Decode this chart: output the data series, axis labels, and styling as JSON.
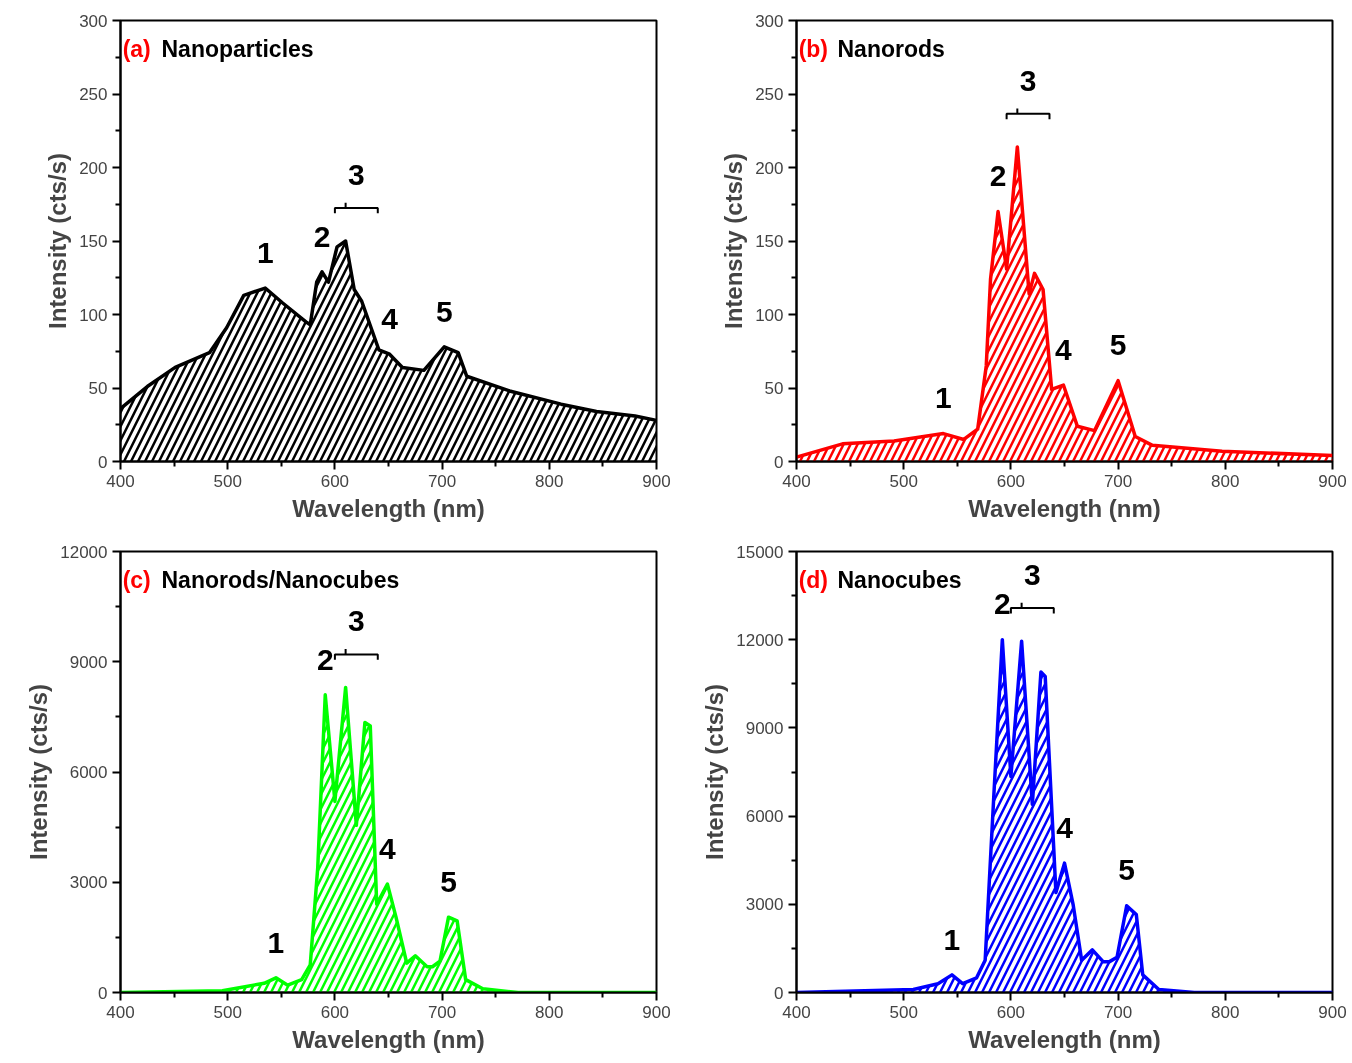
{
  "chart_data": [
    {
      "type": "area",
      "title": "(a) Nanoparticles",
      "xlabel": "Wavelength (nm)",
      "ylabel": "Intensity (cts/s)",
      "color": "#000000",
      "grid": false,
      "xlim": [
        400,
        900
      ],
      "ylim": [
        0,
        300
      ],
      "xticks": [
        400,
        500,
        600,
        700,
        800,
        900
      ],
      "yticks": [
        0,
        50,
        100,
        150,
        200,
        250,
        300
      ],
      "x": [
        400,
        425,
        451,
        483,
        499,
        515,
        535,
        551,
        573,
        577,
        583,
        588,
        594,
        602,
        610,
        618,
        625,
        641,
        651,
        663,
        683,
        702,
        715,
        723,
        763,
        811,
        844,
        880,
        900
      ],
      "values": [
        36,
        51,
        64,
        74,
        91,
        113,
        118,
        108,
        95,
        93,
        122,
        129,
        122,
        146,
        150,
        117,
        109,
        76,
        73,
        64,
        62,
        78,
        74,
        58,
        48,
        39,
        34,
        31,
        28
      ],
      "annotations": [
        {
          "text": "1",
          "x": 535,
          "y": 118
        },
        {
          "text": "2",
          "x": 588,
          "y": 129
        },
        {
          "text": "3",
          "x": 610,
          "y": 150
        },
        {
          "text": "4",
          "x": 651,
          "y": 73
        },
        {
          "text": "5",
          "x": 702,
          "y": 78
        }
      ]
    },
    {
      "type": "area",
      "title": "(b) Nanorods",
      "xlabel": "Wavelength (nm)",
      "ylabel": "Intensity (cts/s)",
      "color": "#ff0000",
      "grid": false,
      "xlim": [
        400,
        900
      ],
      "ylim": [
        0,
        300
      ],
      "xticks": [
        400,
        500,
        600,
        700,
        800,
        900
      ],
      "yticks": [
        0,
        50,
        100,
        150,
        200,
        250,
        300
      ],
      "x": [
        400,
        443,
        491,
        537,
        556,
        569,
        577,
        581,
        588,
        596,
        606,
        617,
        622,
        630,
        638,
        649,
        662,
        678,
        700,
        716,
        732,
        797,
        900
      ],
      "values": [
        3,
        12,
        14,
        19,
        15,
        22,
        65,
        124,
        170,
        131,
        214,
        114,
        128,
        117,
        49,
        52,
        24,
        21,
        55,
        17,
        11,
        7,
        4
      ],
      "annotations": [
        {
          "text": "1",
          "x": 537,
          "y": 19
        },
        {
          "text": "2",
          "x": 588,
          "y": 170
        },
        {
          "text": "3",
          "x": 606,
          "y": 214
        },
        {
          "text": "4",
          "x": 649,
          "y": 52
        },
        {
          "text": "5",
          "x": 700,
          "y": 55
        }
      ]
    },
    {
      "type": "area",
      "title": "(c) Nanorods/Nanocubes",
      "xlabel": "Wavelength (nm)",
      "ylabel": "Intensity (cts/s)",
      "color": "#00ff00",
      "grid": false,
      "xlim": [
        400,
        900
      ],
      "ylim": [
        0,
        12000
      ],
      "xticks": [
        400,
        500,
        600,
        700,
        800,
        900
      ],
      "yticks": [
        0,
        3000,
        6000,
        9000,
        12000
      ],
      "x": [
        400,
        495,
        534,
        545,
        556,
        569,
        577,
        584,
        591,
        600,
        610,
        620,
        628,
        633,
        639,
        649,
        657,
        667,
        675,
        686,
        691,
        698,
        706,
        714,
        722,
        738,
        771,
        900
      ],
      "values": [
        0,
        50,
        250,
        400,
        200,
        350,
        750,
        3400,
        8100,
        5200,
        8300,
        4550,
        7350,
        7250,
        2400,
        2950,
        2050,
        800,
        1000,
        700,
        700,
        850,
        2050,
        1950,
        350,
        100,
        0,
        0
      ],
      "annotations": [
        {
          "text": "1",
          "x": 545,
          "y": 400
        },
        {
          "text": "2",
          "x": 591,
          "y": 8100
        },
        {
          "text": "3",
          "x": 610,
          "y": 8300
        },
        {
          "text": "4",
          "x": 649,
          "y": 2950
        },
        {
          "text": "5",
          "x": 706,
          "y": 2050
        }
      ]
    },
    {
      "type": "area",
      "title": "(d) Nanocubes",
      "xlabel": "Wavelength (nm)",
      "ylabel": "Intensity (cts/s)",
      "color": "#0000ff",
      "grid": false,
      "xlim": [
        400,
        900
      ],
      "ylim": [
        0,
        15000
      ],
      "xticks": [
        400,
        500,
        600,
        700,
        800,
        900
      ],
      "yticks": [
        0,
        3000,
        6000,
        9000,
        12000,
        15000
      ],
      "x": [
        400,
        509,
        532,
        545,
        555,
        568,
        576,
        584,
        592,
        600,
        610,
        620,
        628,
        632,
        642,
        650,
        658,
        666,
        676,
        686,
        692,
        699,
        708,
        717,
        723,
        738,
        771,
        900
      ],
      "values": [
        0,
        100,
        300,
        600,
        300,
        500,
        1100,
        6650,
        12000,
        7350,
        11950,
        6400,
        10900,
        10750,
        3400,
        4400,
        3000,
        1100,
        1450,
        1050,
        1050,
        1200,
        2950,
        2650,
        600,
        100,
        0,
        0
      ],
      "annotations": [
        {
          "text": "1",
          "x": 545,
          "y": 600
        },
        {
          "text": "2",
          "x": 592,
          "y": 12000
        },
        {
          "text": "3",
          "x": 610,
          "y": 11950
        },
        {
          "text": "4",
          "x": 650,
          "y": 4400
        },
        {
          "text": "5",
          "x": 708,
          "y": 2950
        }
      ]
    }
  ]
}
